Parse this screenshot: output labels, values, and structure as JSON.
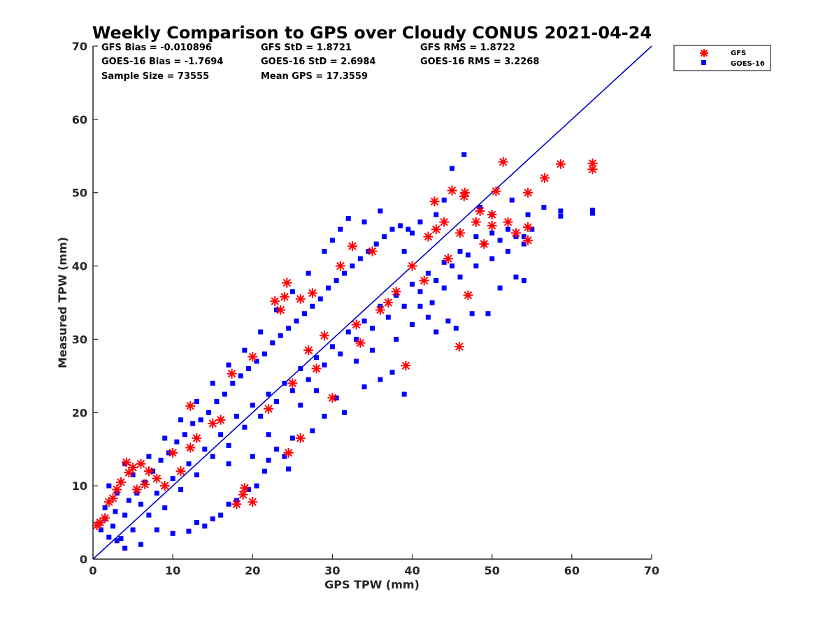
{
  "chart_data": {
    "type": "scatter",
    "title": "Weekly Comparison to GPS over Cloudy CONUS 2021-04-24",
    "xlabel": "GPS TPW (mm)",
    "ylabel": "Measured TPW (mm)",
    "xlim": [
      0,
      70
    ],
    "ylim": [
      0,
      70
    ],
    "xticks": [
      "0",
      "10",
      "20",
      "30",
      "40",
      "50",
      "60",
      "70"
    ],
    "yticks": [
      "0",
      "10",
      "20",
      "30",
      "40",
      "50",
      "60",
      "70"
    ],
    "grid": false,
    "legend_position": "outside-top-right",
    "stats": {
      "gfs_bias": "GFS Bias = -0.010896",
      "gfs_std": "GFS StD = 1.8721",
      "gfs_rms": "GFS RMS = 1.8722",
      "goes_bias": "GOES-16 Bias = -1.7694",
      "goes_std": "GOES-16 StD = 2.6984",
      "goes_rms": "GOES-16 RMS = 3.2268",
      "sample_size": "Sample Size = 73555",
      "mean_gps": "Mean GPS = 17.3559"
    },
    "reference_line": {
      "x": [
        0,
        70
      ],
      "y": [
        0,
        70
      ],
      "color": "#0000cc"
    },
    "series": [
      {
        "name": "GFS",
        "marker": "asterisk",
        "color": "#ff0000",
        "points": [
          [
            0.5,
            4.6
          ],
          [
            0.9,
            5.0
          ],
          [
            1.5,
            5.6
          ],
          [
            2.0,
            7.8
          ],
          [
            2.5,
            8.3
          ],
          [
            3.0,
            9.5
          ],
          [
            4.2,
            13.2
          ],
          [
            4.5,
            11.8
          ],
          [
            5.0,
            12.5
          ],
          [
            6.0,
            13.0
          ],
          [
            7.0,
            12.0
          ],
          [
            12.2,
            20.9
          ],
          [
            17.4,
            25.3
          ],
          [
            20.0,
            27.6
          ],
          [
            22.8,
            35.2
          ],
          [
            24.0,
            35.8
          ],
          [
            24.3,
            37.7
          ],
          [
            23.5,
            34.0
          ],
          [
            26.0,
            35.5
          ],
          [
            27.5,
            36.3
          ],
          [
            31.0,
            40.0
          ],
          [
            32.5,
            42.7
          ],
          [
            35.0,
            42.0
          ],
          [
            42.8,
            48.8
          ],
          [
            45.0,
            50.3
          ],
          [
            46.5,
            49.5
          ],
          [
            46.6,
            50.0
          ],
          [
            50.5,
            50.2
          ],
          [
            51.4,
            54.2
          ],
          [
            54.5,
            50.0
          ],
          [
            56.6,
            52.0
          ],
          [
            58.6,
            53.9
          ],
          [
            62.6,
            54.0
          ],
          [
            62.6,
            53.2
          ],
          [
            48.0,
            46.0
          ],
          [
            50.0,
            45.5
          ],
          [
            52.0,
            46.0
          ],
          [
            54.5,
            45.3
          ],
          [
            54.5,
            43.5
          ],
          [
            46.0,
            44.5
          ],
          [
            44.0,
            46.0
          ],
          [
            43.0,
            45.0
          ],
          [
            45.9,
            29.0
          ],
          [
            39.2,
            26.4
          ],
          [
            47.0,
            36.0
          ],
          [
            12.2,
            15.2
          ],
          [
            20.0,
            7.8
          ],
          [
            18.0,
            7.5
          ],
          [
            18.8,
            8.8
          ],
          [
            19.0,
            9.7
          ],
          [
            30.0,
            22.0
          ],
          [
            24.5,
            14.5
          ],
          [
            26.0,
            16.5
          ],
          [
            15.0,
            18.5
          ],
          [
            10.0,
            14.5
          ],
          [
            8.0,
            11.0
          ],
          [
            6.5,
            10.2
          ],
          [
            3.5,
            10.5
          ],
          [
            5.5,
            9.5
          ],
          [
            28.0,
            26.0
          ],
          [
            33.0,
            32.0
          ],
          [
            36.0,
            34.0
          ],
          [
            38.0,
            36.5
          ],
          [
            40.0,
            40.0
          ],
          [
            22.0,
            20.5
          ],
          [
            25.0,
            24.0
          ],
          [
            42.0,
            44.0
          ],
          [
            48.5,
            47.5
          ],
          [
            50.0,
            47.0
          ],
          [
            53.0,
            44.5
          ],
          [
            49.0,
            43.0
          ],
          [
            44.5,
            41.0
          ],
          [
            41.5,
            38.0
          ],
          [
            37.0,
            35.0
          ],
          [
            33.5,
            29.5
          ],
          [
            29.0,
            30.5
          ],
          [
            27.0,
            28.5
          ],
          [
            16.0,
            19.0
          ],
          [
            13.0,
            16.5
          ],
          [
            11.0,
            12.0
          ],
          [
            9.0,
            10.0
          ]
        ]
      },
      {
        "name": "GOES-16",
        "marker": "square",
        "color": "#0000ff",
        "points": [
          [
            1.0,
            4.0
          ],
          [
            2.0,
            3.0
          ],
          [
            3.0,
            2.5
          ],
          [
            4.0,
            6.0
          ],
          [
            5.0,
            4.0
          ],
          [
            6.0,
            7.5
          ],
          [
            7.0,
            6.0
          ],
          [
            8.0,
            9.0
          ],
          [
            9.0,
            7.0
          ],
          [
            10.0,
            11.0
          ],
          [
            11.0,
            9.5
          ],
          [
            12.0,
            13.0
          ],
          [
            13.0,
            11.5
          ],
          [
            14.0,
            15.0
          ],
          [
            15.0,
            14.0
          ],
          [
            16.0,
            17.0
          ],
          [
            17.0,
            15.5
          ],
          [
            18.0,
            19.5
          ],
          [
            19.0,
            18.0
          ],
          [
            20.0,
            21.0
          ],
          [
            21.0,
            19.5
          ],
          [
            22.0,
            22.5
          ],
          [
            23.0,
            21.5
          ],
          [
            24.0,
            24.0
          ],
          [
            25.0,
            23.0
          ],
          [
            26.0,
            26.0
          ],
          [
            27.0,
            24.5
          ],
          [
            28.0,
            27.5
          ],
          [
            29.0,
            26.5
          ],
          [
            30.0,
            29.0
          ],
          [
            31.0,
            28.0
          ],
          [
            32.0,
            31.0
          ],
          [
            33.0,
            30.0
          ],
          [
            34.0,
            32.5
          ],
          [
            35.0,
            31.5
          ],
          [
            36.0,
            34.5
          ],
          [
            37.0,
            33.0
          ],
          [
            38.0,
            36.0
          ],
          [
            39.0,
            34.5
          ],
          [
            40.0,
            37.5
          ],
          [
            41.0,
            36.5
          ],
          [
            42.0,
            39.0
          ],
          [
            43.0,
            38.0
          ],
          [
            44.0,
            40.5
          ],
          [
            45.0,
            40.0
          ],
          [
            46.0,
            42.0
          ],
          [
            47.0,
            41.5
          ],
          [
            48.0,
            44.0
          ],
          [
            49.0,
            43.0
          ],
          [
            50.0,
            44.5
          ],
          [
            51.0,
            43.5
          ],
          [
            52.0,
            45.0
          ],
          [
            53.0,
            44.0
          ],
          [
            54.0,
            43.0
          ],
          [
            54.5,
            47.0
          ],
          [
            55.0,
            45.0
          ],
          [
            46.5,
            55.2
          ],
          [
            45.0,
            53.3
          ],
          [
            56.5,
            48.0
          ],
          [
            58.6,
            47.5
          ],
          [
            58.6,
            46.8
          ],
          [
            62.6,
            47.6
          ],
          [
            62.6,
            47.2
          ],
          [
            52.5,
            49.0
          ],
          [
            50.0,
            47.0
          ],
          [
            48.5,
            48.0
          ],
          [
            41.0,
            34.5
          ],
          [
            42.0,
            33.0
          ],
          [
            43.0,
            31.0
          ],
          [
            44.5,
            32.5
          ],
          [
            45.5,
            31.5
          ],
          [
            47.5,
            33.5
          ],
          [
            49.5,
            33.5
          ],
          [
            51.0,
            37.0
          ],
          [
            53.0,
            38.5
          ],
          [
            54.0,
            38.0
          ],
          [
            36.0,
            24.5
          ],
          [
            39.0,
            22.5
          ],
          [
            37.5,
            25.5
          ],
          [
            34.0,
            23.5
          ],
          [
            30.5,
            22.0
          ],
          [
            31.5,
            20.0
          ],
          [
            29.0,
            19.5
          ],
          [
            27.5,
            17.5
          ],
          [
            25.0,
            16.5
          ],
          [
            24.0,
            14.0
          ],
          [
            23.0,
            15.0
          ],
          [
            22.0,
            13.5
          ],
          [
            21.5,
            12.0
          ],
          [
            24.5,
            12.3
          ],
          [
            20.5,
            10.0
          ],
          [
            19.5,
            9.5
          ],
          [
            18.0,
            8.0
          ],
          [
            17.0,
            7.5
          ],
          [
            16.0,
            6.0
          ],
          [
            15.0,
            5.5
          ],
          [
            14.0,
            4.5
          ],
          [
            13.0,
            5.0
          ],
          [
            12.0,
            3.8
          ],
          [
            10.0,
            3.5
          ],
          [
            8.0,
            4.0
          ],
          [
            6.0,
            2.0
          ],
          [
            4.0,
            1.5
          ],
          [
            3.5,
            2.8
          ],
          [
            2.5,
            4.5
          ],
          [
            1.5,
            5.5
          ],
          [
            2.8,
            6.5
          ],
          [
            4.5,
            8.0
          ],
          [
            5.5,
            9.0
          ],
          [
            6.5,
            10.5
          ],
          [
            7.5,
            12.0
          ],
          [
            8.5,
            13.5
          ],
          [
            9.5,
            14.5
          ],
          [
            10.5,
            16.0
          ],
          [
            11.5,
            17.0
          ],
          [
            12.5,
            18.5
          ],
          [
            13.5,
            19.0
          ],
          [
            14.5,
            20.0
          ],
          [
            15.5,
            21.5
          ],
          [
            16.5,
            22.5
          ],
          [
            17.5,
            24.0
          ],
          [
            18.5,
            25.0
          ],
          [
            19.5,
            26.0
          ],
          [
            20.5,
            27.0
          ],
          [
            21.5,
            28.0
          ],
          [
            22.5,
            29.5
          ],
          [
            23.5,
            30.5
          ],
          [
            24.5,
            31.5
          ],
          [
            25.5,
            32.5
          ],
          [
            26.5,
            33.5
          ],
          [
            27.5,
            34.5
          ],
          [
            28.5,
            35.5
          ],
          [
            29.5,
            37.0
          ],
          [
            30.5,
            38.0
          ],
          [
            31.5,
            39.0
          ],
          [
            32.5,
            40.0
          ],
          [
            33.5,
            41.0
          ],
          [
            34.5,
            42.0
          ],
          [
            35.5,
            43.0
          ],
          [
            36.5,
            44.0
          ],
          [
            37.5,
            45.0
          ],
          [
            38.5,
            45.5
          ],
          [
            39.5,
            45.0
          ],
          [
            36.0,
            47.5
          ],
          [
            34.0,
            46.0
          ],
          [
            32.0,
            46.5
          ],
          [
            31.0,
            45.0
          ],
          [
            30.0,
            43.5
          ],
          [
            29.0,
            42.0
          ],
          [
            27.0,
            39.0
          ],
          [
            25.0,
            36.5
          ],
          [
            23.0,
            34.0
          ],
          [
            21.0,
            31.0
          ],
          [
            19.0,
            28.5
          ],
          [
            17.0,
            26.5
          ],
          [
            15.0,
            24.0
          ],
          [
            13.0,
            21.5
          ],
          [
            11.0,
            19.0
          ],
          [
            9.0,
            16.5
          ],
          [
            7.0,
            14.0
          ],
          [
            5.0,
            11.5
          ],
          [
            3.0,
            9.0
          ],
          [
            1.5,
            7.0
          ],
          [
            2.0,
            10.0
          ],
          [
            4.0,
            13.0
          ],
          [
            17.0,
            13.0
          ],
          [
            20.0,
            14.0
          ],
          [
            22.0,
            17.0
          ],
          [
            26.0,
            21.0
          ],
          [
            28.0,
            23.0
          ],
          [
            33.0,
            27.0
          ],
          [
            35.0,
            28.5
          ],
          [
            38.0,
            30.0
          ],
          [
            40.0,
            32.0
          ],
          [
            42.5,
            35.0
          ],
          [
            44.0,
            37.0
          ],
          [
            46.0,
            38.5
          ],
          [
            48.0,
            40.0
          ],
          [
            50.0,
            41.0
          ],
          [
            52.0,
            42.0
          ],
          [
            54.0,
            44.0
          ],
          [
            43.0,
            47.0
          ],
          [
            44.0,
            49.0
          ],
          [
            41.0,
            46.0
          ],
          [
            40.0,
            44.5
          ],
          [
            39.0,
            42.0
          ]
        ]
      }
    ]
  }
}
